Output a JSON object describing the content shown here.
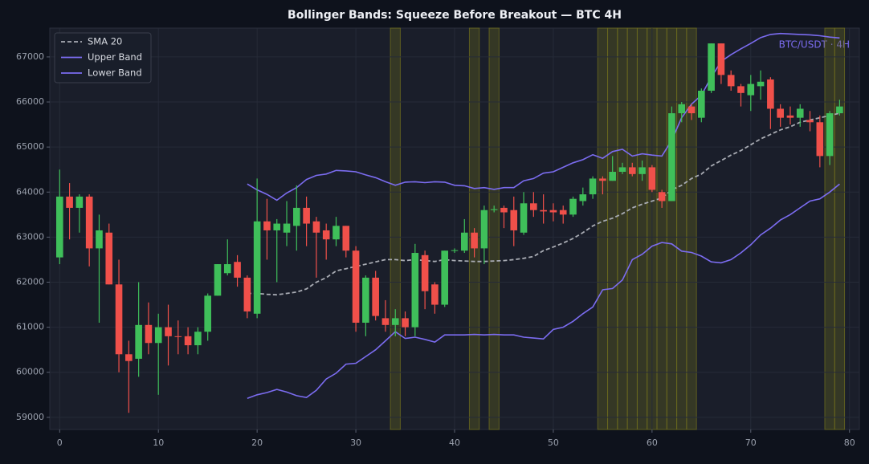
{
  "chart_data": {
    "type": "candlestick",
    "title": "Bollinger Bands: Squeeze Before Breakout — BTC 4H",
    "annotation": "BTC/USDT · 4H",
    "x": [
      0,
      1,
      2,
      3,
      4,
      5,
      6,
      7,
      8,
      9,
      10,
      11,
      12,
      13,
      14,
      15,
      16,
      17,
      18,
      19,
      20,
      21,
      22,
      23,
      24,
      25,
      26,
      27,
      28,
      29,
      30,
      31,
      32,
      33,
      34,
      35,
      36,
      37,
      38,
      39,
      40,
      41,
      42,
      43,
      44,
      45,
      46,
      47,
      48,
      49,
      50,
      51,
      52,
      53,
      54,
      55,
      56,
      57,
      58,
      59,
      60,
      61,
      62,
      63,
      64,
      65,
      66,
      67,
      68,
      69,
      70,
      71,
      72,
      73,
      74,
      75,
      76,
      77,
      78,
      79
    ],
    "open": [
      62550,
      63900,
      63650,
      63900,
      62750,
      63100,
      61950,
      60400,
      60300,
      61050,
      60650,
      61000,
      60800,
      60800,
      60600,
      60900,
      61700,
      62200,
      62450,
      62100,
      61300,
      63350,
      63150,
      63100,
      63250,
      63650,
      63350,
      63150,
      62950,
      63250,
      62700,
      61100,
      62100,
      61200,
      61050,
      61200,
      61000,
      62600,
      61950,
      61500,
      62700,
      62700,
      63100,
      62750,
      63600,
      63650,
      63600,
      63100,
      63750,
      63600,
      63600,
      63600,
      63500,
      63800,
      63950,
      64300,
      64250,
      64450,
      64550,
      64400,
      64550,
      64000,
      63800,
      65750,
      65900,
      65650,
      66250,
      67300,
      66600,
      66350,
      66150,
      66350,
      66500,
      65850,
      65700,
      65650,
      65600,
      65550,
      64800,
      65750
    ],
    "high": [
      64500,
      64200,
      63950,
      63950,
      63500,
      63300,
      62500,
      60700,
      62000,
      61550,
      61300,
      61500,
      61150,
      61000,
      61000,
      61750,
      62400,
      62950,
      62600,
      62150,
      64300,
      63850,
      63400,
      63800,
      64150,
      63900,
      63450,
      63300,
      63450,
      63250,
      62800,
      62150,
      62250,
      61600,
      61400,
      61350,
      62850,
      62700,
      62000,
      62700,
      62750,
      63400,
      63200,
      63700,
      63700,
      63700,
      63900,
      64000,
      64000,
      63950,
      63750,
      63700,
      63900,
      64100,
      64350,
      64350,
      64800,
      64650,
      64650,
      64700,
      64600,
      64050,
      65900,
      66000,
      65950,
      66300,
      67300,
      67300,
      66700,
      66400,
      66600,
      66700,
      66550,
      65950,
      65900,
      65950,
      65800,
      65700,
      65800,
      66050
    ],
    "low": [
      62400,
      62950,
      63100,
      62350,
      61100,
      61950,
      60000,
      59100,
      59900,
      60400,
      59500,
      60150,
      60400,
      60400,
      60400,
      60700,
      61700,
      62150,
      61900,
      61200,
      61200,
      62500,
      62000,
      62800,
      62700,
      62800,
      62100,
      62500,
      62800,
      62550,
      60900,
      60800,
      61150,
      60900,
      60800,
      60800,
      60800,
      61400,
      61300,
      61450,
      62650,
      62650,
      62550,
      62400,
      63550,
      63200,
      62800,
      63050,
      63450,
      63300,
      63350,
      63300,
      63450,
      63700,
      63850,
      63950,
      64250,
      64400,
      64350,
      64250,
      64000,
      63650,
      63800,
      65550,
      65600,
      65550,
      66200,
      66400,
      66250,
      65900,
      65800,
      66050,
      65400,
      65450,
      65500,
      65450,
      65350,
      64550,
      64600,
      65700
    ],
    "close": [
      63900,
      63650,
      63900,
      62750,
      63150,
      61950,
      60400,
      60250,
      61050,
      60650,
      61000,
      60800,
      60790,
      60600,
      60900,
      61700,
      62400,
      62400,
      62100,
      61350,
      63350,
      63150,
      63300,
      63300,
      63650,
      63300,
      63100,
      62950,
      63250,
      62700,
      61100,
      62100,
      61250,
      61050,
      61200,
      61000,
      62650,
      61800,
      61500,
      62700,
      62710,
      63100,
      62750,
      63600,
      63620,
      63550,
      63150,
      63750,
      63600,
      63570,
      63550,
      63500,
      63850,
      63950,
      64300,
      64250,
      64450,
      64550,
      64400,
      64550,
      64050,
      63800,
      65750,
      65950,
      65750,
      66250,
      67300,
      66600,
      66350,
      66200,
      66400,
      66450,
      65850,
      65650,
      65650,
      65850,
      65550,
      64800,
      65750,
      65900
    ],
    "up_color": "#3fbf5a",
    "down_color": "#f0504a",
    "series": [
      {
        "name": "SMA 20",
        "color": "#a8abb3",
        "style": "dashed",
        "values": [
          null,
          null,
          null,
          null,
          null,
          null,
          null,
          null,
          null,
          null,
          null,
          null,
          null,
          null,
          null,
          null,
          null,
          null,
          null,
          61750,
          61750,
          61730,
          61720,
          61750,
          61780,
          61850,
          62000,
          62100,
          62250,
          62300,
          62350,
          62400,
          62450,
          62500,
          62500,
          62480,
          62500,
          62480,
          62460,
          62500,
          62480,
          62470,
          62460,
          62460,
          62470,
          62480,
          62500,
          62530,
          62570,
          62700,
          62780,
          62870,
          62970,
          63100,
          63250,
          63350,
          63420,
          63520,
          63650,
          63730,
          63800,
          63870,
          64050,
          64150,
          64300,
          64400,
          64580,
          64700,
          64820,
          64920,
          65050,
          65180,
          65280,
          65380,
          65450,
          65550,
          65600,
          65650,
          65700,
          65750
        ]
      },
      {
        "name": "Upper Band",
        "color": "#7b6cf0",
        "style": "solid",
        "values": [
          null,
          null,
          null,
          null,
          null,
          null,
          null,
          null,
          null,
          null,
          null,
          null,
          null,
          null,
          null,
          null,
          null,
          null,
          null,
          64180,
          64050,
          63950,
          63820,
          63980,
          64100,
          64280,
          64370,
          64400,
          64480,
          64470,
          64450,
          64380,
          64320,
          64230,
          64150,
          64220,
          64230,
          64210,
          64230,
          64220,
          64150,
          64140,
          64080,
          64100,
          64060,
          64100,
          64100,
          64250,
          64300,
          64420,
          64450,
          64550,
          64650,
          64720,
          64830,
          64750,
          64900,
          64950,
          64800,
          64850,
          64820,
          64800,
          65150,
          65650,
          65950,
          66150,
          66550,
          66900,
          67050,
          67180,
          67300,
          67430,
          67500,
          67520,
          67510,
          67500,
          67490,
          67470,
          67440,
          67420
        ]
      },
      {
        "name": "Lower Band",
        "color": "#7b6cf0",
        "style": "solid",
        "values": [
          null,
          null,
          null,
          null,
          null,
          null,
          null,
          null,
          null,
          null,
          null,
          null,
          null,
          null,
          null,
          null,
          null,
          null,
          null,
          59420,
          59500,
          59550,
          59620,
          59560,
          59480,
          59440,
          59600,
          59850,
          59980,
          60180,
          60200,
          60350,
          60500,
          60700,
          60900,
          60750,
          60780,
          60730,
          60670,
          60830,
          60830,
          60830,
          60840,
          60830,
          60840,
          60830,
          60830,
          60780,
          60760,
          60740,
          60950,
          61000,
          61130,
          61300,
          61450,
          61830,
          61860,
          62050,
          62500,
          62620,
          62800,
          62880,
          62850,
          62690,
          62660,
          62580,
          62450,
          62430,
          62500,
          62650,
          62830,
          63050,
          63200,
          63380,
          63500,
          63650,
          63800,
          63850,
          64000,
          64180
        ]
      }
    ],
    "highlight_indices": [
      34,
      42,
      44,
      55,
      56,
      57,
      58,
      59,
      60,
      61,
      62,
      63,
      64,
      78,
      79
    ],
    "highlight_color": "#6b6a1e",
    "xlim": [
      -1,
      81
    ],
    "xticks": [
      0,
      10,
      20,
      30,
      40,
      50,
      60,
      70,
      80
    ],
    "ylim": [
      58730,
      67640
    ],
    "yticks": [
      59000,
      60000,
      61000,
      62000,
      63000,
      64000,
      65000,
      66000,
      67000
    ],
    "grid": true,
    "legend_position": "upper left"
  }
}
